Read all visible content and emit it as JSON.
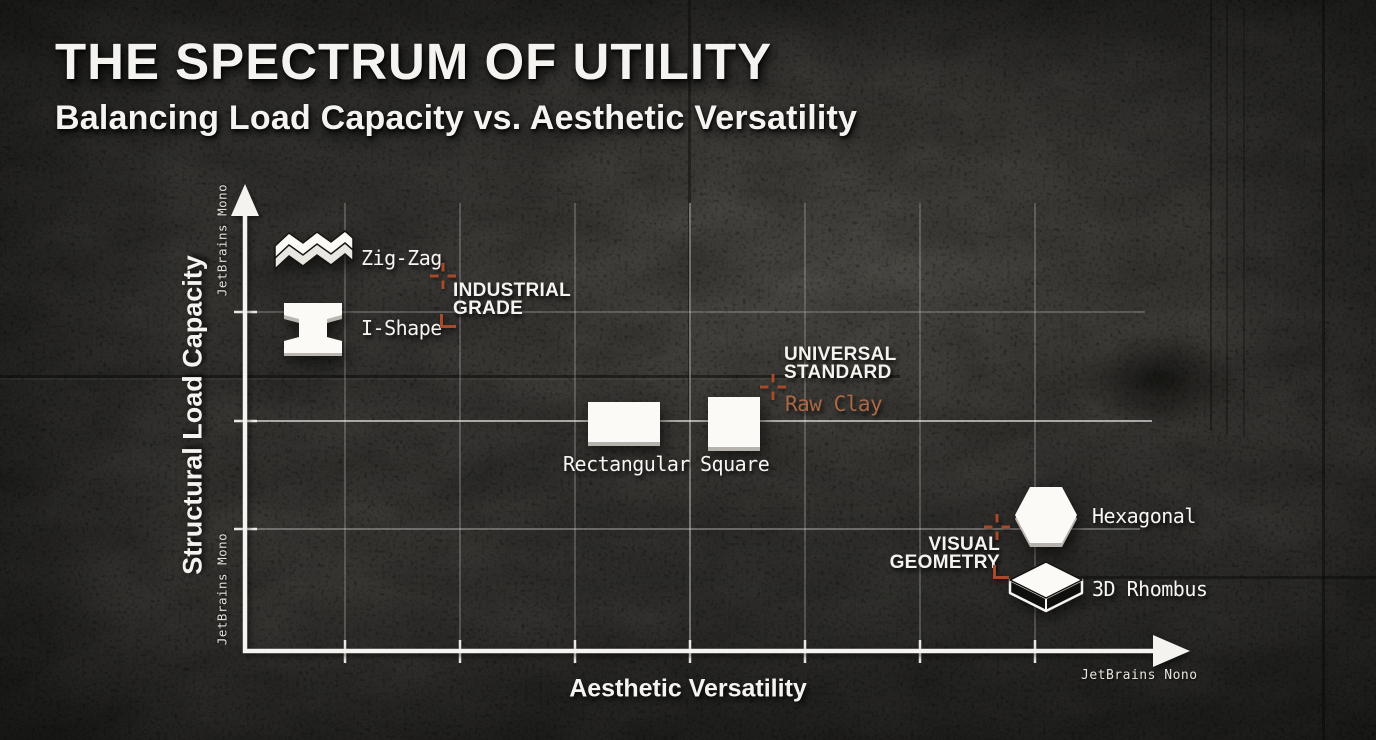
{
  "title": "THE SPECTRUM OF UTILITY",
  "subtitle": "Balancing Load Capacity vs. Aesthetic Versatility",
  "axes": {
    "y_label": "Structural Load Capacity",
    "x_label": "Aesthetic Versatility",
    "y_font_note_top": "JetBrains Mono",
    "y_font_note_bottom": "JetBrains Mono",
    "x_font_note": "JetBrains Nono"
  },
  "points": [
    {
      "label": "Zig-Zag"
    },
    {
      "label": "I-Shape"
    },
    {
      "label": "Rectangular"
    },
    {
      "label": "Square"
    },
    {
      "label": "Hexagonal"
    },
    {
      "label": "3D Rhombus"
    }
  ],
  "annotations": {
    "industrial": {
      "line1": "INDUSTRIAL",
      "line2": "GRADE"
    },
    "universal": {
      "line1": "UNIVERSAL",
      "line2": "STANDARD",
      "sub": "Raw Clay"
    },
    "visual": {
      "line1": "VISUAL",
      "line2": "GEOMETRY"
    }
  },
  "colors": {
    "accent_rust": "#a8492a",
    "clay_text": "#ab6848",
    "ink_white": "#f4f3ef",
    "background_base": "#2e2d2a"
  },
  "chart_data": {
    "type": "scatter",
    "title": "THE SPECTRUM OF UTILITY",
    "subtitle": "Balancing Load Capacity vs. Aesthetic Versatility",
    "xlabel": "Aesthetic Versatility",
    "ylabel": "Structural Load Capacity",
    "axis_scale": "0-10 normalized; axes are unlabeled arrows (7 x-ticks, 3 y-ticks), grid on",
    "legend_position": "none",
    "points": [
      {
        "label": "Zig-Zag",
        "x": 0.8,
        "y": 8.9,
        "shape": "zigzag-paver"
      },
      {
        "label": "I-Shape",
        "x": 0.8,
        "y": 7.3,
        "shape": "i-shape-paver"
      },
      {
        "label": "Rectangular",
        "x": 4.1,
        "y": 5.2,
        "shape": "rectangle-paver"
      },
      {
        "label": "Square",
        "x": 5.3,
        "y": 5.2,
        "shape": "square-paver"
      },
      {
        "label": "Hexagonal",
        "x": 8.8,
        "y": 3.1,
        "shape": "hexagon-paver"
      },
      {
        "label": "3D Rhombus",
        "x": 8.8,
        "y": 1.4,
        "shape": "rhombus-3d-paver"
      }
    ],
    "annotations": [
      {
        "label": "INDUSTRIAL GRADE",
        "x": 2.2,
        "y": 8.5,
        "marker": "crosshair"
      },
      {
        "label": "UNIVERSAL STANDARD",
        "sub": "Raw Clay",
        "x": 5.8,
        "y": 6.0,
        "marker": "crosshair"
      },
      {
        "label": "VISUAL GEOMETRY",
        "x": 8.2,
        "y": 2.8,
        "marker": "crosshair"
      }
    ]
  }
}
